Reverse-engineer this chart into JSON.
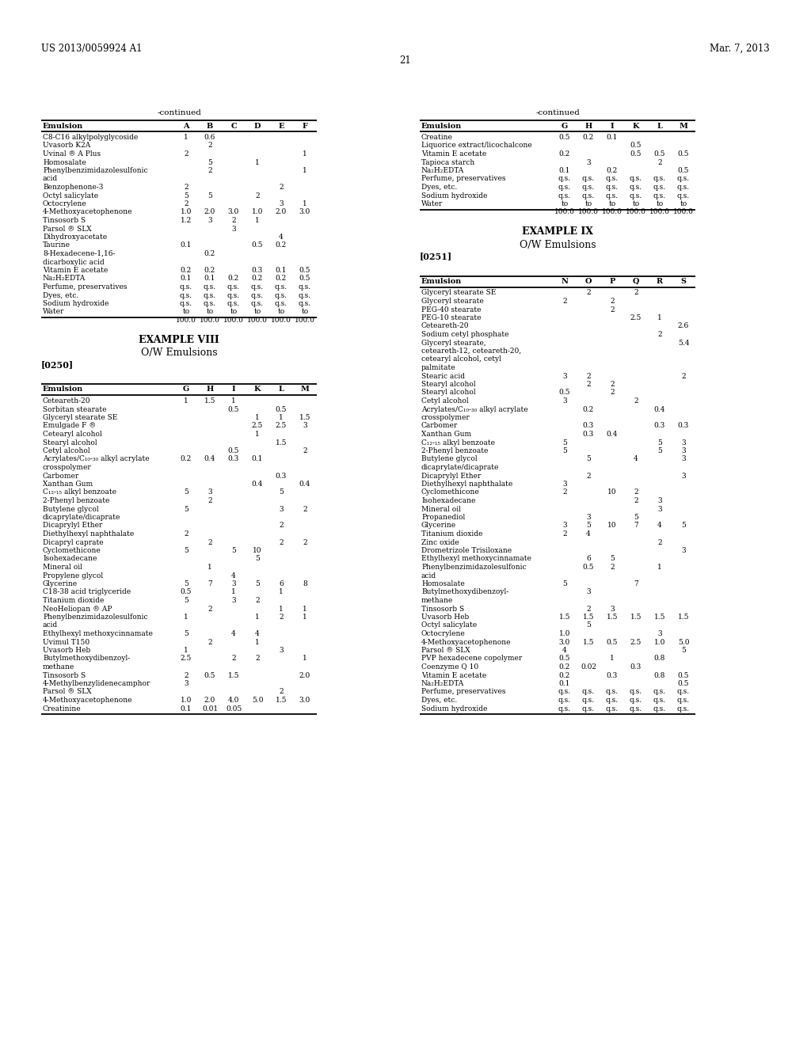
{
  "page_header_left": "US 2013/0059924 A1",
  "page_header_right": "Mar. 7, 2013",
  "page_number": "21",
  "top_left_table": {
    "title": "-continued",
    "col_headers": [
      "Emulsion",
      "A",
      "B",
      "C",
      "D",
      "E",
      "F"
    ],
    "rows": [
      [
        "C8-C16 alkylpolyglycoside",
        "1",
        "0.6",
        "",
        "",
        "",
        ""
      ],
      [
        "Uvasorb K2A",
        "",
        "2",
        "",
        "",
        "",
        ""
      ],
      [
        "Uvinal ® A Plus",
        "2",
        "",
        "",
        "",
        "",
        "1"
      ],
      [
        "Homosalate",
        "",
        "5",
        "",
        "1",
        "",
        ""
      ],
      [
        "Phenylbenzimidazolesulfonic\nacid",
        "",
        "2",
        "",
        "",
        "",
        "1"
      ],
      [
        "Benzophenone-3",
        "2",
        "",
        "",
        "",
        "2",
        ""
      ],
      [
        "Octyl salicylate",
        "5",
        "5",
        "",
        "2",
        "",
        ""
      ],
      [
        "Octocrylene",
        "2",
        "",
        "",
        "",
        "3",
        "1"
      ],
      [
        "4-Methoxyacetophenone",
        "1.0",
        "2.0",
        "3.0",
        "1.0",
        "2.0",
        "3.0"
      ],
      [
        "Tinsosorb S",
        "1.2",
        "3",
        "2",
        "1",
        "",
        ""
      ],
      [
        "Parsol ® SLX",
        "",
        "",
        "3",
        "",
        "",
        ""
      ],
      [
        "Dihydroxyacetate",
        "",
        "",
        "",
        "",
        "4",
        ""
      ],
      [
        "Taurine",
        "0.1",
        "",
        "",
        "0.5",
        "0.2",
        ""
      ],
      [
        "8-Hexadecene-1,16-\ndicarboxylic acid",
        "",
        "0.2",
        "",
        "",
        "",
        ""
      ],
      [
        "Vitamin E acetate",
        "0.2",
        "0.2",
        "",
        "0.3",
        "0.1",
        "0.5"
      ],
      [
        "Na₂H₂EDTA",
        "0.1",
        "0.1",
        "0.2",
        "0.2",
        "0.2",
        "0.5"
      ],
      [
        "Perfume, preservatives",
        "q.s.",
        "q.s.",
        "q.s.",
        "q.s.",
        "q.s.",
        "q.s."
      ],
      [
        "Dyes, etc.",
        "q.s.",
        "q.s.",
        "q.s.",
        "q.s.",
        "q.s.",
        "q.s."
      ],
      [
        "Sodium hydroxide",
        "q.s.",
        "q.s.",
        "q.s.",
        "q.s.",
        "q.s.",
        "q.s."
      ],
      [
        "Water",
        "to\n100.0",
        "to\n100.0",
        "to\n100.0",
        "to\n100.0",
        "to\n100.0",
        "to\n100.0"
      ]
    ]
  },
  "top_right_table": {
    "title": "-continued",
    "col_headers": [
      "Emulsion",
      "G",
      "H",
      "I",
      "K",
      "L",
      "M"
    ],
    "rows": [
      [
        "Creatine",
        "0.5",
        "0.2",
        "0.1",
        "",
        "",
        ""
      ],
      [
        "Liquorice extract/licochalcone",
        "",
        "",
        "",
        "0.5",
        "",
        ""
      ],
      [
        "Vitamin E acetate",
        "0.2",
        "",
        "",
        "0.5",
        "0.5",
        "0.5"
      ],
      [
        "Tapioca starch",
        "",
        "3",
        "",
        "",
        "2",
        ""
      ],
      [
        "Na₂H₂EDTA",
        "0.1",
        "",
        "0.2",
        "",
        "",
        "0.5"
      ],
      [
        "Perfume, preservatives",
        "q.s.",
        "q.s.",
        "q.s.",
        "q.s.",
        "q.s.",
        "q.s."
      ],
      [
        "Dyes, etc.",
        "q.s.",
        "q.s.",
        "q.s.",
        "q.s.",
        "q.s.",
        "q.s."
      ],
      [
        "Sodium hydroxide",
        "q.s.",
        "q.s.",
        "q.s.",
        "q.s.",
        "q.s.",
        "q.s."
      ],
      [
        "Water",
        "to\n100.0",
        "to\n100.0",
        "to\n100.0",
        "to\n100.0",
        "to\n100.0",
        "to\n100.0"
      ]
    ]
  },
  "example8_title": "EXAMPLE VIII",
  "example8_subtitle": "O/W Emulsions",
  "example8_para": "[0250]",
  "bottom_left_table": {
    "col_headers": [
      "Emulsion",
      "G",
      "H",
      "I",
      "K",
      "L",
      "M"
    ],
    "rows": [
      [
        "Ceteareth-20",
        "1",
        "1.5",
        "1",
        "",
        "",
        ""
      ],
      [
        "Sorbitan stearate",
        "",
        "",
        "0.5",
        "",
        "0.5",
        ""
      ],
      [
        "Glyceryl stearate SE",
        "",
        "",
        "",
        "1",
        "1",
        "1.5"
      ],
      [
        "Emulgade F ®",
        "",
        "",
        "",
        "2.5",
        "2.5",
        "3"
      ],
      [
        "Cetearyl alcohol",
        "",
        "",
        "",
        "1",
        "",
        ""
      ],
      [
        "Stearyl alcohol",
        "",
        "",
        "",
        "",
        "1.5",
        ""
      ],
      [
        "Cetyl alcohol",
        "",
        "",
        "0.5",
        "",
        "",
        "2"
      ],
      [
        "Acrylates/C₁₀-₃₀ alkyl acrylate\ncrosspolymer",
        "0.2",
        "0.4",
        "0.3",
        "0.1",
        "",
        ""
      ],
      [
        "Carbomer",
        "",
        "",
        "",
        "",
        "0.3",
        ""
      ],
      [
        "Xanthan Gum",
        "",
        "",
        "",
        "0.4",
        "",
        "0.4"
      ],
      [
        "C₁₂-₁₅ alkyl benzoate",
        "5",
        "3",
        "",
        "",
        "5",
        ""
      ],
      [
        "2-Phenyl benzoate",
        "",
        "2",
        "",
        "",
        "",
        ""
      ],
      [
        "Butylene glycol\ndicaprylate/dicaprate",
        "5",
        "",
        "",
        "",
        "3",
        "2"
      ],
      [
        "Dicaprylyl Ether",
        "",
        "",
        "",
        "",
        "2",
        ""
      ],
      [
        "Diethylhexyl naphthalate",
        "2",
        "",
        "",
        "",
        "",
        ""
      ],
      [
        "Dicapryl caprate",
        "",
        "2",
        "",
        "",
        "2",
        "2"
      ],
      [
        "Cyclomethicone",
        "5",
        "",
        "5",
        "10",
        "",
        ""
      ],
      [
        "Isohexadecane",
        "",
        "",
        "",
        "5",
        "",
        ""
      ],
      [
        "Mineral oil",
        "",
        "1",
        "",
        "",
        "",
        ""
      ],
      [
        "Propylene glycol",
        "",
        "",
        "4",
        "",
        "",
        ""
      ],
      [
        "Glycerine",
        "5",
        "7",
        "3",
        "5",
        "6",
        "8"
      ],
      [
        "C18-38 acid triglyceride",
        "0.5",
        "",
        "1",
        "",
        "1",
        ""
      ],
      [
        "Titanium dioxide",
        "5",
        "",
        "3",
        "2",
        "",
        ""
      ],
      [
        "NeoHeliopan ® AP",
        "",
        "2",
        "",
        "",
        "1",
        "1"
      ],
      [
        "Phenylbenzimidazolesulfonic\nacid",
        "1",
        "",
        "",
        "1",
        "2",
        "1"
      ],
      [
        "Ethylhexyl methoxycinnamate",
        "5",
        "",
        "4",
        "4",
        "",
        ""
      ],
      [
        "Uvimul T150",
        "",
        "2",
        "",
        "1",
        "",
        ""
      ],
      [
        "Uvasorb Heb",
        "1",
        "",
        "",
        "",
        "3",
        ""
      ],
      [
        "Butylmethoxydibenzoyl-\nmethane",
        "2.5",
        "",
        "2",
        "2",
        "",
        "1"
      ],
      [
        "Tinsosorb S",
        "2",
        "0.5",
        "1.5",
        "",
        "",
        "2.0"
      ],
      [
        "4-Methylbenzylidenecamphor",
        "3",
        "",
        "",
        "",
        "",
        ""
      ],
      [
        "Parsol ® SLX",
        "",
        "",
        "",
        "",
        "2",
        ""
      ],
      [
        "4-Methoxyacetophenone",
        "1.0",
        "2.0",
        "4.0",
        "5.0",
        "1.5",
        "3.0"
      ],
      [
        "Creatinine",
        "0.1",
        "0.01",
        "0.05",
        "",
        "",
        ""
      ]
    ]
  },
  "example9_title": "EXAMPLE IX",
  "example9_subtitle": "O/W Emulsions",
  "example9_para": "[0251]",
  "bottom_right_table": {
    "col_headers": [
      "Emulsion",
      "N",
      "O",
      "P",
      "Q",
      "R",
      "S"
    ],
    "rows": [
      [
        "Glyceryl stearate SE",
        "",
        "2",
        "",
        "2",
        "",
        ""
      ],
      [
        "Glyceryl stearate",
        "2",
        "",
        "2",
        "",
        "",
        ""
      ],
      [
        "PEG-40 stearate",
        "",
        "",
        "2",
        "",
        "",
        ""
      ],
      [
        "PEG-10 stearate",
        "",
        "",
        "",
        "2.5",
        "1",
        ""
      ],
      [
        "Ceteareth-20",
        "",
        "",
        "",
        "",
        "",
        "2.6"
      ],
      [
        "Sodium cetyl phosphate",
        "",
        "",
        "",
        "",
        "2",
        ""
      ],
      [
        "Glyceryl stearate,\nceteareth-12, ceteareth-20,\ncetearyl alcohol, cetyl\npalmitate",
        "",
        "",
        "",
        "",
        "",
        "5.4"
      ],
      [
        "Stearic acid",
        "3",
        "2",
        "",
        "",
        "",
        "2"
      ],
      [
        "Stearyl alcohol",
        "",
        "2",
        "2",
        "",
        "",
        ""
      ],
      [
        "Stearyl alcohol",
        "0.5",
        "",
        "2",
        "",
        "",
        ""
      ],
      [
        "Cetyl alcohol",
        "3",
        "",
        "",
        "2",
        "",
        ""
      ],
      [
        "Acrylates/C₁₀-₃₀ alkyl acrylate\ncrosspolymer",
        "",
        "0.2",
        "",
        "",
        "0.4",
        ""
      ],
      [
        "Carbomer",
        "",
        "0.3",
        "",
        "",
        "0.3",
        "0.3"
      ],
      [
        "Xanthan Gum",
        "",
        "0.3",
        "0.4",
        "",
        "",
        ""
      ],
      [
        "C₁₂-₁₅ alkyl benzoate",
        "5",
        "",
        "",
        "",
        "5",
        "3"
      ],
      [
        "2-Phenyl benzoate",
        "5",
        "",
        "",
        "",
        "5",
        "3"
      ],
      [
        "Butylene glycol\ndicaprylate/dicaprate",
        "",
        "5",
        "",
        "4",
        "",
        "3"
      ],
      [
        "Dicaprylyl Ether",
        "",
        "2",
        "",
        "",
        "",
        "3"
      ],
      [
        "Diethylhexyl naphthalate",
        "3",
        "",
        "",
        "",
        "",
        ""
      ],
      [
        "Cyclomethicone",
        "2",
        "",
        "10",
        "2",
        "",
        ""
      ],
      [
        "Isohexadecane",
        "",
        "",
        "",
        "2",
        "3",
        ""
      ],
      [
        "Mineral oil",
        "",
        "",
        "",
        "",
        "3",
        ""
      ],
      [
        "Propanediol",
        "",
        "3",
        "",
        "5",
        "",
        ""
      ],
      [
        "Glycerine",
        "3",
        "5",
        "10",
        "7",
        "4",
        "5"
      ],
      [
        "Titanium dioxide",
        "2",
        "4",
        "",
        "",
        "",
        ""
      ],
      [
        "Zinc oxide",
        "",
        "",
        "",
        "",
        "2",
        ""
      ],
      [
        "Drometrizole Trisiloxane",
        "",
        "",
        "",
        "",
        "",
        "3"
      ],
      [
        "Ethylhexyl methoxycinnamate",
        "",
        "6",
        "5",
        "",
        "",
        ""
      ],
      [
        "Phenylbenzimidazolesulfonic\nacid",
        "",
        "0.5",
        "2",
        "",
        "1",
        ""
      ],
      [
        "Homosalate",
        "5",
        "",
        "",
        "7",
        "",
        ""
      ],
      [
        "Butylmethoxydibenzoyl-\nmethane",
        "",
        "3",
        "",
        "",
        "",
        ""
      ],
      [
        "Tinsosorb S",
        "",
        "2",
        "3",
        "",
        "",
        ""
      ],
      [
        "Uvasorb Heb",
        "1.5",
        "1.5",
        "1.5",
        "1.5",
        "1.5",
        "1.5"
      ],
      [
        "Octyl salicylate",
        "",
        "5",
        "",
        "",
        "",
        ""
      ],
      [
        "Octocrylene",
        "1.0",
        "",
        "",
        "",
        "3",
        ""
      ],
      [
        "4-Methoxyacetophenone",
        "3.0",
        "1.5",
        "0.5",
        "2.5",
        "1.0",
        "5.0"
      ],
      [
        "Parsol ® SLX",
        "4",
        "",
        "",
        "",
        "",
        "5"
      ],
      [
        "PVP hexadecene copolymer",
        "0.5",
        "",
        "1",
        "",
        "0.8",
        ""
      ],
      [
        "Coenzyme Q 10",
        "0.2",
        "0.02",
        "",
        "0.3",
        "",
        ""
      ],
      [
        "Vitamin E acetate",
        "0.2",
        "",
        "0.3",
        "",
        "0.8",
        "0.5"
      ],
      [
        "Na₂H₂EDTA",
        "0.1",
        "",
        "",
        "",
        "",
        "0.5"
      ],
      [
        "Perfume, preservatives",
        "q.s.",
        "q.s.",
        "q.s.",
        "q.s.",
        "q.s.",
        "q.s."
      ],
      [
        "Dyes, etc.",
        "q.s.",
        "q.s.",
        "q.s.",
        "q.s.",
        "q.s.",
        "q.s."
      ],
      [
        "Sodium hydroxide",
        "q.s.",
        "q.s.",
        "q.s.",
        "q.s.",
        "q.s.",
        "q.s."
      ]
    ]
  }
}
